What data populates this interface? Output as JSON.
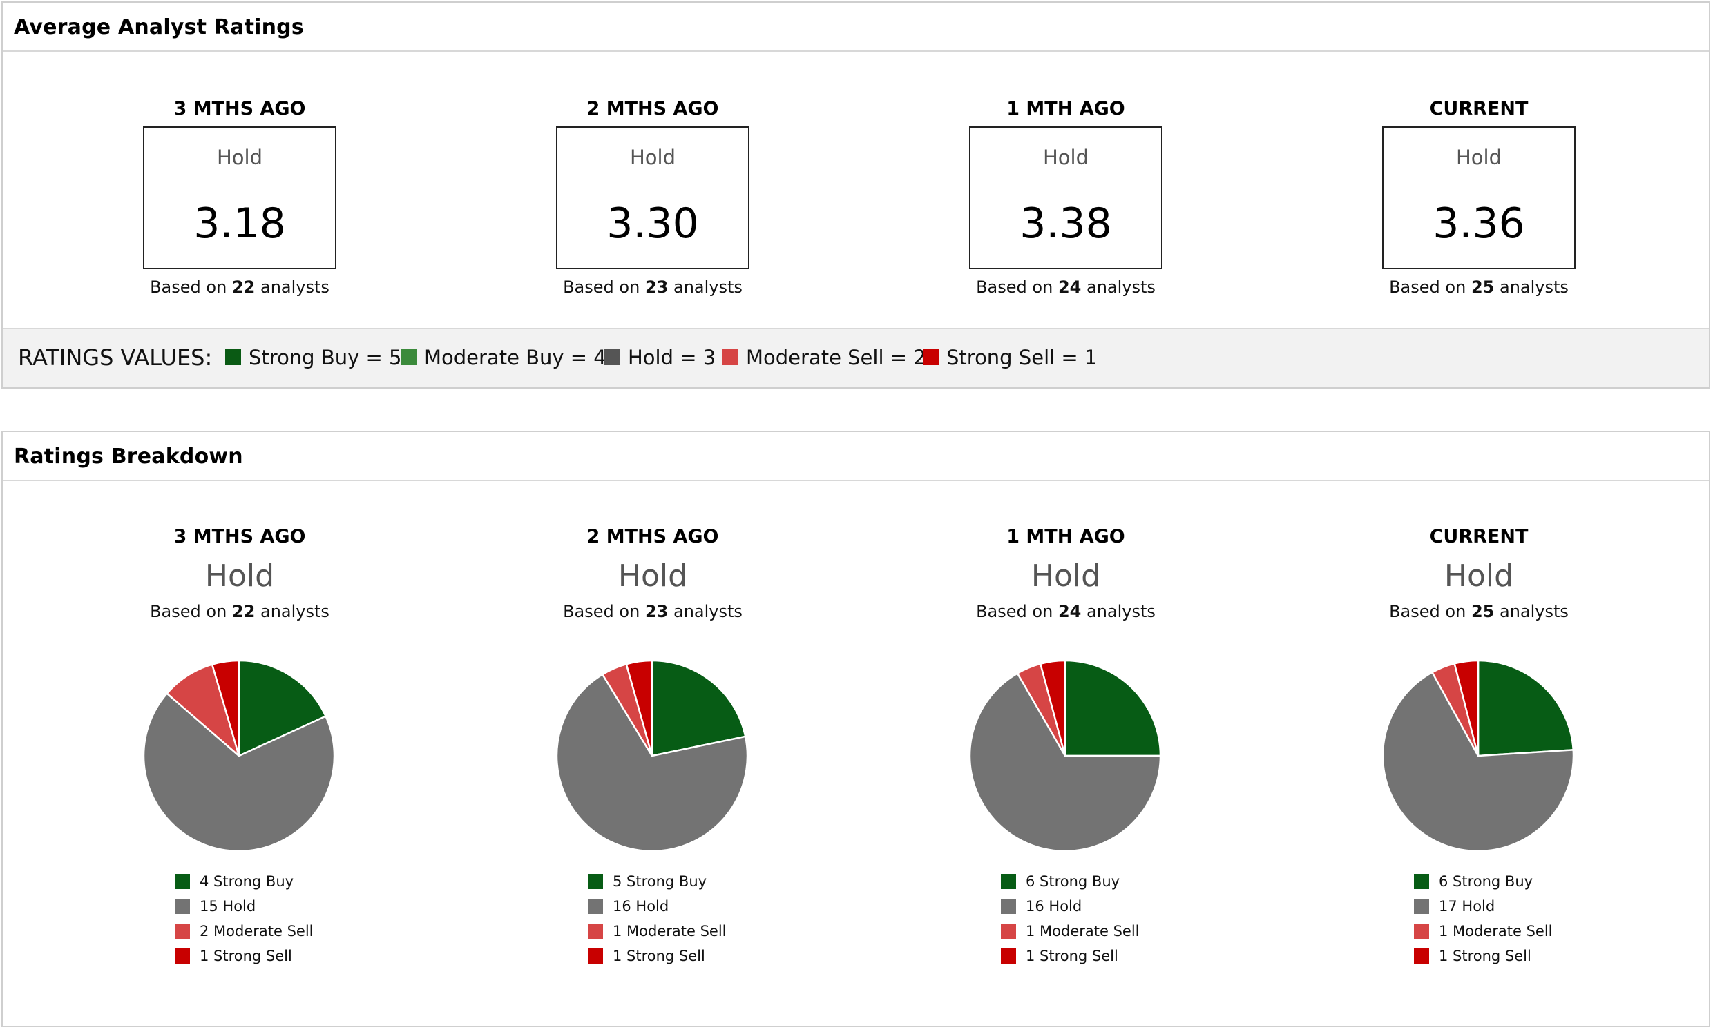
{
  "avg_panel": {
    "title": "Average Analyst Ratings",
    "columns": [
      {
        "period": "3 MTHS AGO",
        "label": "Hold",
        "value": "3.18",
        "based_prefix": "Based on",
        "count": "22",
        "based_suffix": "analysts"
      },
      {
        "period": "2 MTHS AGO",
        "label": "Hold",
        "value": "3.30",
        "based_prefix": "Based on",
        "count": "23",
        "based_suffix": "analysts"
      },
      {
        "period": "1 MTH AGO",
        "label": "Hold",
        "value": "3.38",
        "based_prefix": "Based on",
        "count": "24",
        "based_suffix": "analysts"
      },
      {
        "period": "CURRENT",
        "label": "Hold",
        "value": "3.36",
        "based_prefix": "Based on",
        "count": "25",
        "based_suffix": "analysts"
      }
    ],
    "ratings_values": {
      "title": "RATINGS VALUES:",
      "items": [
        {
          "label": "Strong Buy = 5",
          "color": "#0a5a14"
        },
        {
          "label": "Moderate Buy = 4",
          "color": "#3b8a3b"
        },
        {
          "label": "Hold = 3",
          "color": "#555555"
        },
        {
          "label": "Moderate Sell = 2",
          "color": "#d64545"
        },
        {
          "label": "Strong Sell = 1",
          "color": "#c80000"
        }
      ]
    }
  },
  "breakdown_panel": {
    "title": "Ratings Breakdown",
    "columns": [
      {
        "period": "3 MTHS AGO",
        "label": "Hold",
        "based_prefix": "Based on",
        "count": "22",
        "based_suffix": "analysts"
      },
      {
        "period": "2 MTHS AGO",
        "label": "Hold",
        "based_prefix": "Based on",
        "count": "23",
        "based_suffix": "analysts"
      },
      {
        "period": "1 MTH AGO",
        "label": "Hold",
        "based_prefix": "Based on",
        "count": "24",
        "based_suffix": "analysts"
      },
      {
        "period": "CURRENT",
        "label": "Hold",
        "based_prefix": "Based on",
        "count": "25",
        "based_suffix": "analysts"
      }
    ]
  },
  "colors": {
    "strong_buy": "#075c15",
    "hold": "#737373",
    "moderate_sell": "#d64545",
    "strong_sell": "#c80000"
  },
  "chart_data": [
    {
      "type": "pie",
      "title": "3 MTHS AGO",
      "slices": [
        {
          "label": "4 Strong Buy",
          "value": 4,
          "color": "#075c15"
        },
        {
          "label": "15 Hold",
          "value": 15,
          "color": "#737373"
        },
        {
          "label": "2 Moderate Sell",
          "value": 2,
          "color": "#d64545"
        },
        {
          "label": "1 Strong Sell",
          "value": 1,
          "color": "#c80000"
        }
      ]
    },
    {
      "type": "pie",
      "title": "2 MTHS AGO",
      "slices": [
        {
          "label": "5 Strong Buy",
          "value": 5,
          "color": "#075c15"
        },
        {
          "label": "16 Hold",
          "value": 16,
          "color": "#737373"
        },
        {
          "label": "1 Moderate Sell",
          "value": 1,
          "color": "#d64545"
        },
        {
          "label": "1 Strong Sell",
          "value": 1,
          "color": "#c80000"
        }
      ]
    },
    {
      "type": "pie",
      "title": "1 MTH AGO",
      "slices": [
        {
          "label": "6 Strong Buy",
          "value": 6,
          "color": "#075c15"
        },
        {
          "label": "16 Hold",
          "value": 16,
          "color": "#737373"
        },
        {
          "label": "1 Moderate Sell",
          "value": 1,
          "color": "#d64545"
        },
        {
          "label": "1 Strong Sell",
          "value": 1,
          "color": "#c80000"
        }
      ]
    },
    {
      "type": "pie",
      "title": "CURRENT",
      "slices": [
        {
          "label": "6 Strong Buy",
          "value": 6,
          "color": "#075c15"
        },
        {
          "label": "17 Hold",
          "value": 17,
          "color": "#737373"
        },
        {
          "label": "1 Moderate Sell",
          "value": 1,
          "color": "#d64545"
        },
        {
          "label": "1 Strong Sell",
          "value": 1,
          "color": "#c80000"
        }
      ]
    }
  ]
}
